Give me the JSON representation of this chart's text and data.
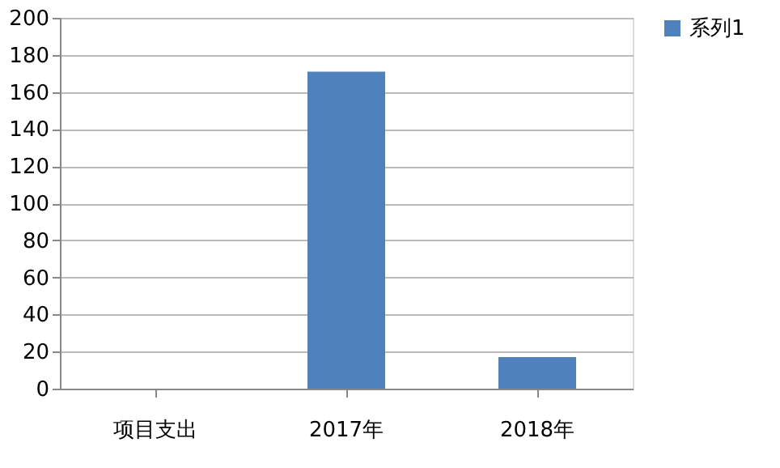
{
  "chart_data": {
    "type": "bar",
    "categories": [
      "项目支出",
      "2017年",
      "2018年"
    ],
    "series": [
      {
        "name": "系列1",
        "color": "#4f81bd",
        "values": [
          null,
          171,
          17
        ]
      }
    ],
    "ylim": [
      0,
      200
    ],
    "yticks": [
      0,
      20,
      40,
      60,
      80,
      100,
      120,
      140,
      160,
      180,
      200
    ],
    "grid": "y",
    "legend": "right"
  }
}
